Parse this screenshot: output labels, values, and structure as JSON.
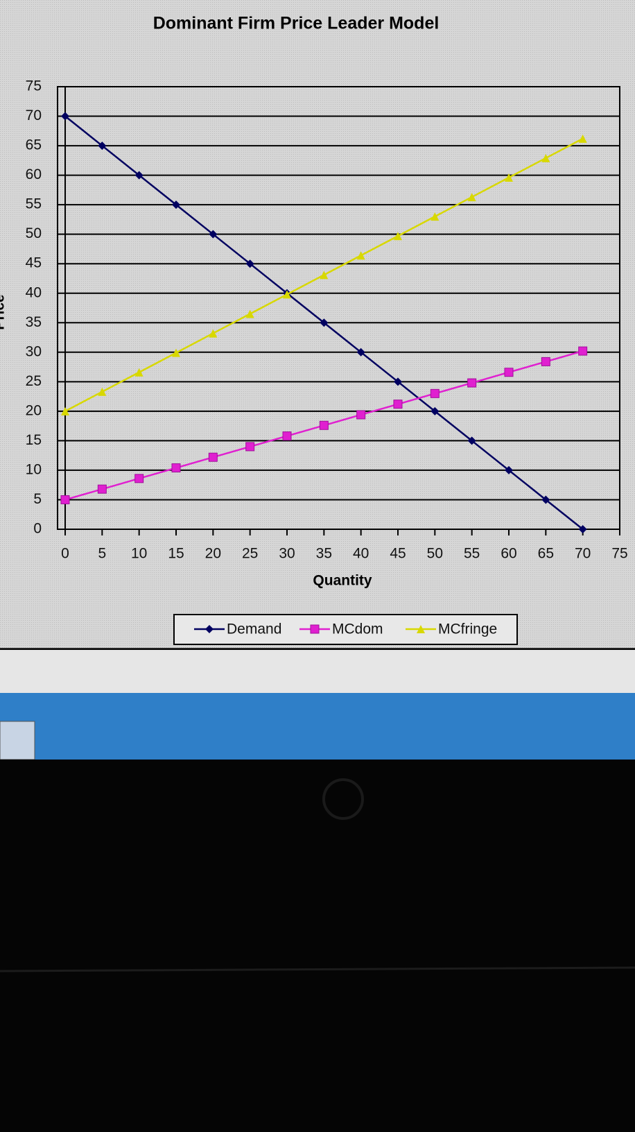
{
  "chart_data": {
    "type": "line",
    "title": "Dominant Firm Price Leader Model",
    "x_label": "Quantity",
    "y_label": "Price",
    "x": [
      0,
      5,
      10,
      15,
      20,
      25,
      30,
      35,
      40,
      45,
      50,
      55,
      60,
      65,
      70
    ],
    "series": [
      {
        "name": "Demand",
        "color": "#000060",
        "marker": "diamond",
        "values": [
          70,
          65,
          60,
          55,
          50,
          45,
          40,
          35,
          30,
          25,
          20,
          15,
          10,
          5,
          0
        ]
      },
      {
        "name": "MCdom",
        "color": "#e020d0",
        "marker": "square",
        "values": [
          5,
          6.8,
          8.6,
          10.4,
          12.2,
          14,
          15.8,
          17.6,
          19.4,
          21.2,
          23,
          24.8,
          26.6,
          28.4,
          30.2
        ]
      },
      {
        "name": "MCfringe",
        "color": "#d8d800",
        "marker": "triangle",
        "values": [
          20,
          23.3,
          26.6,
          29.9,
          33.2,
          36.5,
          39.8,
          43.1,
          46.4,
          49.7,
          53,
          56.3,
          59.6,
          62.9,
          66.2
        ]
      }
    ],
    "xlim": [
      0,
      75
    ],
    "xticks": [
      0,
      5,
      10,
      15,
      20,
      25,
      30,
      35,
      40,
      45,
      50,
      55,
      60,
      65,
      70,
      75
    ],
    "ylim": [
      0,
      75
    ],
    "yticks": [
      0,
      5,
      10,
      15,
      20,
      25,
      30,
      35,
      40,
      45,
      50,
      55,
      60,
      65,
      70,
      75
    ],
    "grid": true,
    "legend": "bottom"
  }
}
